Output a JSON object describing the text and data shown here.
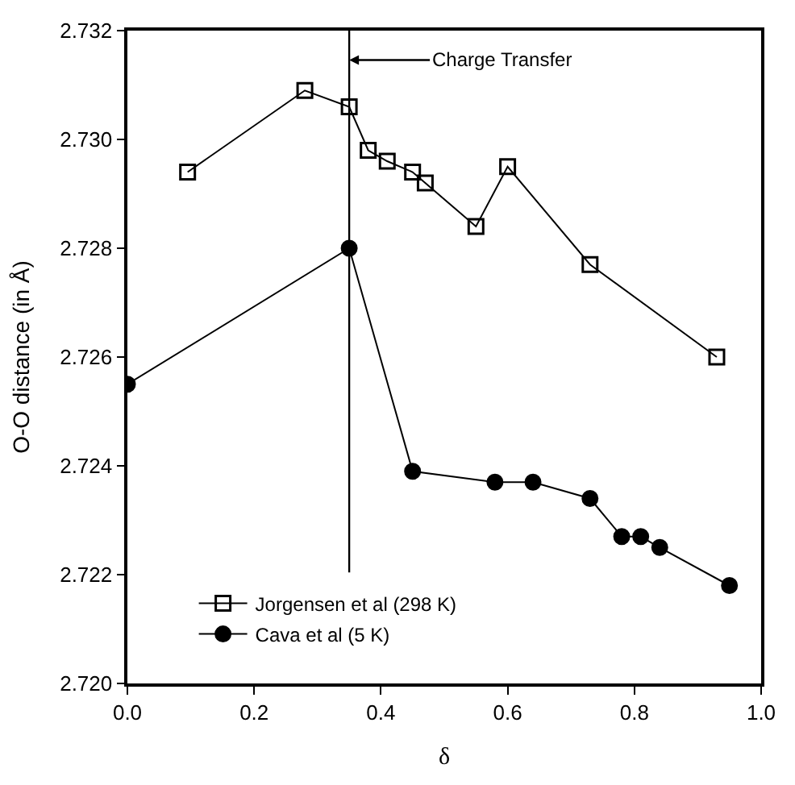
{
  "chart_data": {
    "type": "line",
    "xlabel": "δ",
    "ylabel": "O-O distance (in Å)",
    "xlim": [
      0,
      1
    ],
    "xticks": [
      {
        "value": 0,
        "label": "0.0"
      },
      {
        "value": 0.2,
        "label": "0.2"
      },
      {
        "value": 0.4,
        "label": "0.4"
      },
      {
        "value": 0.6,
        "label": "0.6"
      },
      {
        "value": 0.8,
        "label": "0.8"
      },
      {
        "value": 1,
        "label": "1.0"
      }
    ],
    "ylim": [
      2.72,
      2.732
    ],
    "yticks": [
      {
        "value": 2.72,
        "label": "2.720"
      },
      {
        "value": 2.722,
        "label": "2.722"
      },
      {
        "value": 2.724,
        "label": "2.724"
      },
      {
        "value": 2.726,
        "label": "2.726"
      },
      {
        "value": 2.728,
        "label": "2.728"
      },
      {
        "value": 2.73,
        "label": "2.730"
      },
      {
        "value": 2.732,
        "label": "2.732"
      }
    ],
    "legend": "bottom left",
    "series": [
      {
        "name": "Jorgensen et al (298 K)",
        "color": "#000000",
        "marker": "square",
        "x": [
          0.095,
          0.28,
          0.35,
          0.38,
          0.41,
          0.45,
          0.47,
          0.55,
          0.6,
          0.73,
          0.93
        ],
        "values": [
          2.7294,
          2.7309,
          2.7306,
          2.7298,
          2.7296,
          2.7294,
          2.7292,
          2.7284,
          2.7295,
          2.7277,
          2.726
        ]
      },
      {
        "name": "Cava et al (5 K)",
        "color": "#000000",
        "marker": "circle",
        "x": [
          0,
          0.35,
          0.45,
          0.58,
          0.64,
          0.73,
          0.78,
          0.81,
          0.84,
          0.95
        ],
        "values": [
          2.7255,
          2.728,
          2.7239,
          2.7237,
          2.7237,
          2.7234,
          2.7227,
          2.7227,
          2.7225,
          2.7218
        ]
      }
    ],
    "ref_lines": [
      {
        "axis": "x",
        "value": 0.35,
        "label": "Charge Transfer",
        "color": "#000000"
      }
    ]
  }
}
